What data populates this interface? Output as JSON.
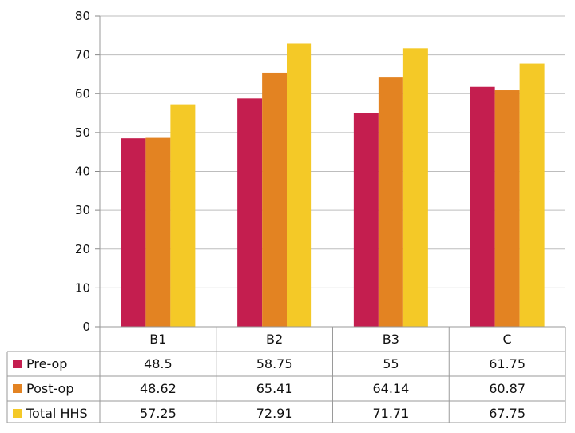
{
  "chart_data": {
    "type": "bar",
    "title": "",
    "xlabel": "",
    "ylabel": "",
    "categories": [
      "B1",
      "B2",
      "B3",
      "C"
    ],
    "ylim": [
      0,
      80
    ],
    "yticks": [
      0,
      10,
      20,
      30,
      40,
      50,
      60,
      70,
      80
    ],
    "grid": true,
    "legend": "table-left",
    "data_table": true,
    "series": [
      {
        "name": "Pre-op",
        "color": "#c41e4f",
        "values": [
          48.5,
          58.75,
          55,
          61.75
        ],
        "value_labels": [
          "48.5",
          "58.75",
          "55",
          "61.75"
        ]
      },
      {
        "name": "Post-op",
        "color": "#e38322",
        "values": [
          48.62,
          65.41,
          64.14,
          60.87
        ],
        "value_labels": [
          "48.62",
          "65.41",
          "64.14",
          "60.87"
        ]
      },
      {
        "name": "Total HHS",
        "color": "#f4c927",
        "values": [
          57.25,
          72.91,
          71.71,
          67.75
        ],
        "value_labels": [
          "57.25",
          "72.91",
          "71.71",
          "67.75"
        ]
      }
    ]
  }
}
